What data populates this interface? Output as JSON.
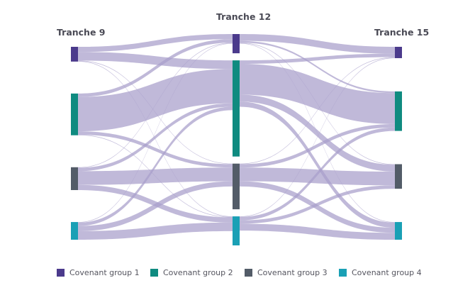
{
  "columns": [
    "Tranche 9",
    "Tranche 12",
    "Tranche 15"
  ],
  "groups": [
    {
      "name": "Covenant group 1",
      "color": "#4b3a8c"
    },
    {
      "name": "Covenant group 2",
      "color": "#0f8b80"
    },
    {
      "name": "Covenant group 3",
      "color": "#535c68"
    },
    {
      "name": "Covenant group 4",
      "color": "#1aa0b5"
    }
  ],
  "link_color": "#a89ecb",
  "flows": [
    {
      "stage": 0,
      "from": 0,
      "to": 0,
      "value": 3
    },
    {
      "stage": 0,
      "from": 0,
      "to": 1,
      "value": 5
    },
    {
      "stage": 0,
      "from": 0,
      "to": 2,
      "value": 0.3
    },
    {
      "stage": 0,
      "from": 0,
      "to": 3,
      "value": 0.3
    },
    {
      "stage": 0,
      "from": 1,
      "to": 0,
      "value": 2
    },
    {
      "stage": 0,
      "from": 1,
      "to": 1,
      "value": 20
    },
    {
      "stage": 0,
      "from": 1,
      "to": 2,
      "value": 2
    },
    {
      "stage": 0,
      "from": 1,
      "to": 3,
      "value": 0.3
    },
    {
      "stage": 0,
      "from": 2,
      "to": 0,
      "value": 0.3
    },
    {
      "stage": 0,
      "from": 2,
      "to": 1,
      "value": 2
    },
    {
      "stage": 0,
      "from": 2,
      "to": 2,
      "value": 8
    },
    {
      "stage": 0,
      "from": 2,
      "to": 3,
      "value": 3
    },
    {
      "stage": 0,
      "from": 3,
      "to": 0,
      "value": 0.3
    },
    {
      "stage": 0,
      "from": 3,
      "to": 1,
      "value": 2
    },
    {
      "stage": 0,
      "from": 3,
      "to": 2,
      "value": 3
    },
    {
      "stage": 0,
      "from": 3,
      "to": 3,
      "value": 5
    },
    {
      "stage": 1,
      "from": 0,
      "to": 0,
      "value": 4
    },
    {
      "stage": 1,
      "from": 0,
      "to": 1,
      "value": 1
    },
    {
      "stage": 1,
      "from": 0,
      "to": 2,
      "value": 0.3
    },
    {
      "stage": 1,
      "from": 0,
      "to": 3,
      "value": 0.3
    },
    {
      "stage": 1,
      "from": 1,
      "to": 0,
      "value": 2
    },
    {
      "stage": 1,
      "from": 1,
      "to": 1,
      "value": 18
    },
    {
      "stage": 1,
      "from": 1,
      "to": 2,
      "value": 4
    },
    {
      "stage": 1,
      "from": 1,
      "to": 3,
      "value": 3
    },
    {
      "stage": 1,
      "from": 2,
      "to": 0,
      "value": 0.3
    },
    {
      "stage": 1,
      "from": 2,
      "to": 1,
      "value": 2
    },
    {
      "stage": 1,
      "from": 2,
      "to": 2,
      "value": 8
    },
    {
      "stage": 1,
      "from": 2,
      "to": 3,
      "value": 3
    },
    {
      "stage": 1,
      "from": 3,
      "to": 0,
      "value": 0.3
    },
    {
      "stage": 1,
      "from": 3,
      "to": 1,
      "value": 2
    },
    {
      "stage": 1,
      "from": 3,
      "to": 2,
      "value": 2
    },
    {
      "stage": 1,
      "from": 3,
      "to": 3,
      "value": 4
    }
  ]
}
